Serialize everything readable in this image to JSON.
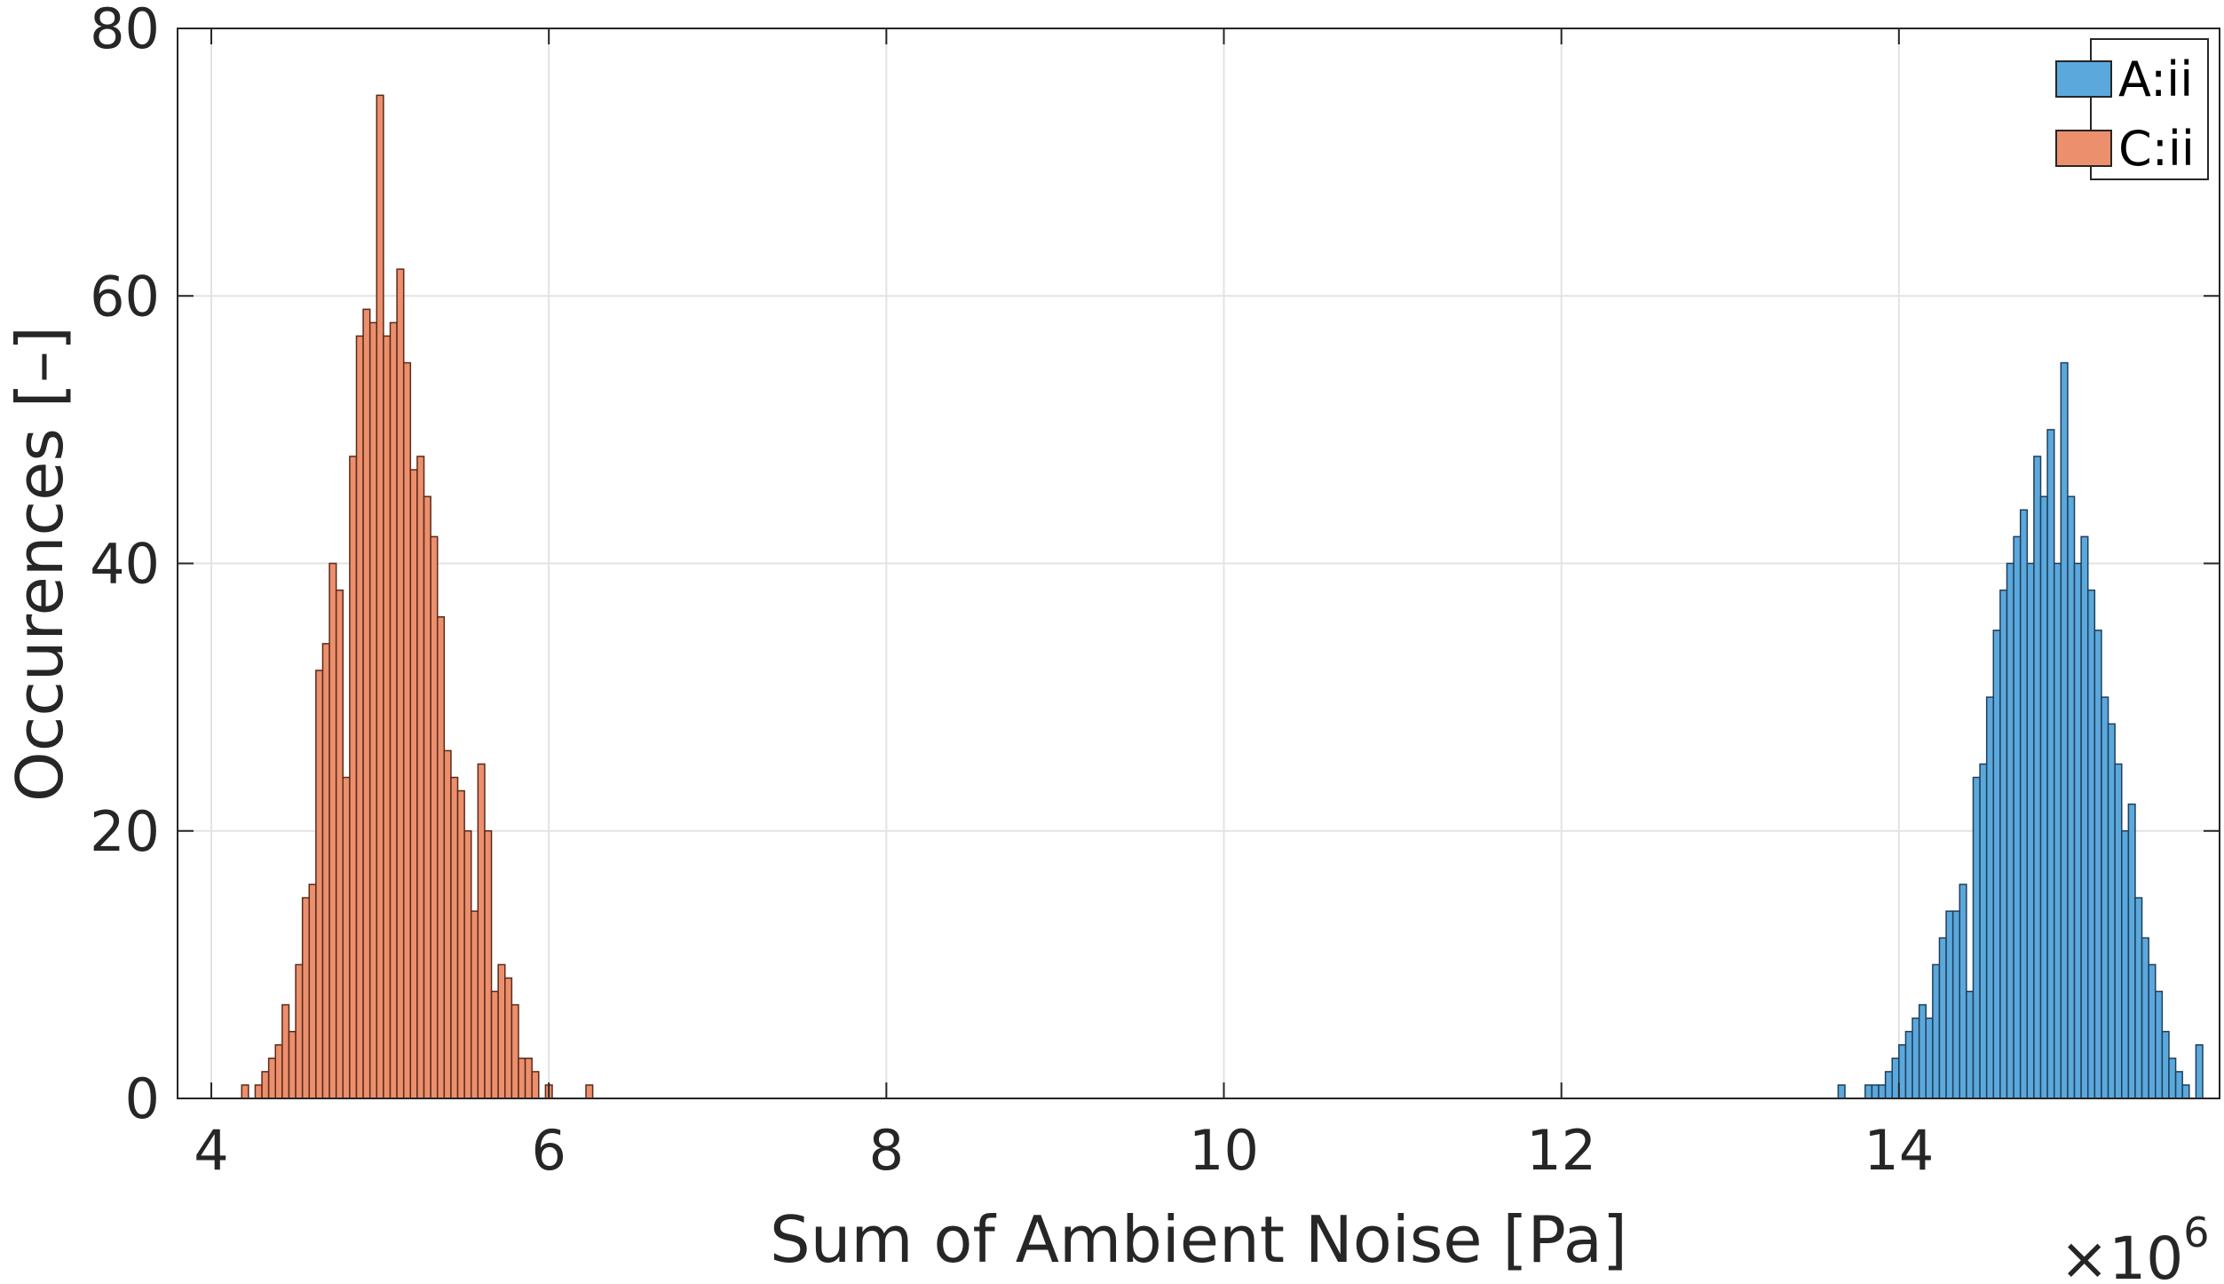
{
  "chart_data": {
    "type": "bar",
    "subtype": "histogram",
    "title": "",
    "xlabel": "Sum of Ambient Noise [Pa]",
    "ylabel": "Occurences [–]",
    "x_exponent_label": "×10",
    "x_exponent_power": "6",
    "xlim": [
      3.8,
      15.9
    ],
    "ylim": [
      0,
      80
    ],
    "x_ticks": [
      4,
      6,
      8,
      10,
      12,
      14
    ],
    "y_ticks": [
      0,
      20,
      40,
      60,
      80
    ],
    "x_tick_labels": [
      "4",
      "6",
      "8",
      "10",
      "12",
      "14"
    ],
    "y_tick_labels": [
      "0",
      "20",
      "40",
      "60",
      "80"
    ],
    "grid": true,
    "legend_position": "top-right",
    "bin_width": 0.04,
    "series": [
      {
        "name": "A:ii",
        "color": "#5ba8dc",
        "edge_color": "#1f3f5a",
        "bin_start": 13.64,
        "counts": [
          1,
          0,
          0,
          0,
          1,
          1,
          1,
          2,
          3,
          4,
          5,
          6,
          7,
          6,
          10,
          12,
          14,
          14,
          16,
          8,
          24,
          25,
          30,
          35,
          38,
          40,
          42,
          44,
          40,
          48,
          45,
          50,
          40,
          55,
          45,
          40,
          42,
          38,
          35,
          30,
          28,
          25,
          20,
          22,
          15,
          12,
          10,
          8,
          5,
          3,
          2,
          1,
          0,
          4
        ]
      },
      {
        "name": "C:ii",
        "color": "#ec8f6d",
        "edge_color": "#5a2a1a",
        "bin_start": 4.18,
        "counts": [
          1,
          0,
          1,
          2,
          3,
          4,
          7,
          5,
          10,
          15,
          16,
          32,
          34,
          40,
          38,
          24,
          48,
          57,
          59,
          58,
          75,
          57,
          58,
          62,
          55,
          47,
          48,
          45,
          42,
          36,
          26,
          24,
          23,
          20,
          14,
          25,
          20,
          8,
          10,
          9,
          7,
          3,
          3,
          2,
          0,
          1,
          0,
          0,
          0,
          0,
          0,
          1
        ]
      }
    ]
  }
}
